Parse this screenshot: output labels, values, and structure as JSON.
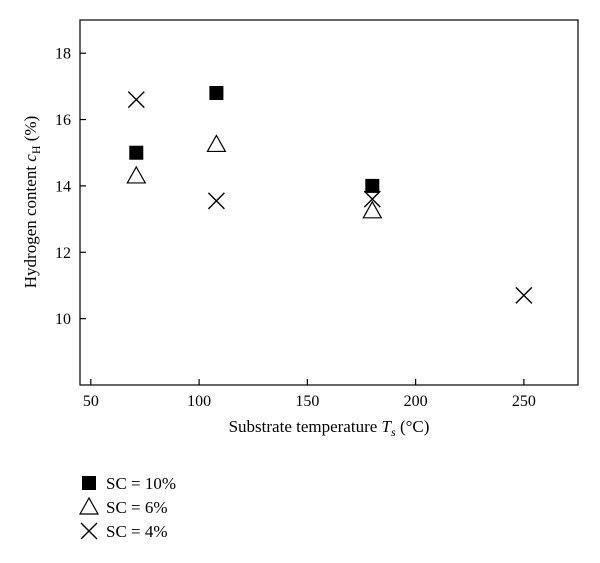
{
  "chart_data": {
    "type": "scatter",
    "title": "",
    "xlabel": {
      "prefix": "Substrate temperature ",
      "symbol": "T",
      "subscript": "s",
      "suffix": " (°C)"
    },
    "ylabel": {
      "prefix": "Hydrogen content ",
      "symbol": "c",
      "subscript": "H",
      "suffix": " (%)"
    },
    "xlim": [
      45,
      275
    ],
    "ylim": [
      8,
      19
    ],
    "xticks": [
      50,
      100,
      150,
      200,
      250
    ],
    "yticks": [
      10,
      12,
      14,
      16,
      18
    ],
    "grid": false,
    "legend_position": "bottom-left, below plot",
    "series": [
      {
        "name": "SC = 10%",
        "marker": "square",
        "color": "#000000",
        "points": [
          {
            "x": 71,
            "y": 15.0
          },
          {
            "x": 108,
            "y": 16.8
          },
          {
            "x": 180,
            "y": 14.0
          }
        ]
      },
      {
        "name": "SC = 6%",
        "marker": "triangle",
        "color": "#000000",
        "points": [
          {
            "x": 71,
            "y": 14.3
          },
          {
            "x": 108,
            "y": 15.25
          },
          {
            "x": 180,
            "y": 13.25
          }
        ]
      },
      {
        "name": "SC = 4%",
        "marker": "cross",
        "color": "#000000",
        "points": [
          {
            "x": 71,
            "y": 16.6
          },
          {
            "x": 108,
            "y": 13.55
          },
          {
            "x": 180,
            "y": 13.6
          },
          {
            "x": 250,
            "y": 10.7
          }
        ]
      }
    ]
  }
}
